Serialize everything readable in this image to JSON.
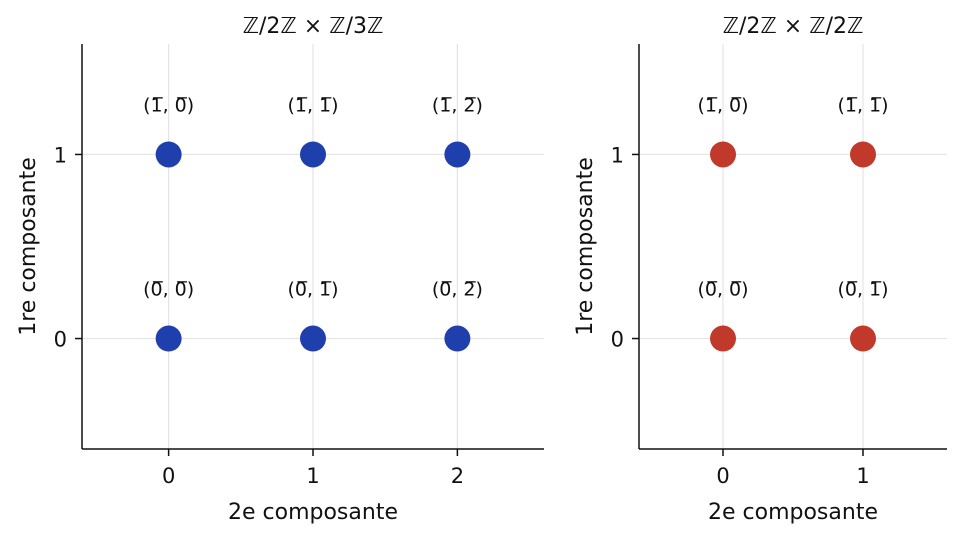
{
  "chart_data": [
    {
      "type": "scatter",
      "title": "ℤ/2ℤ × ℤ/3ℤ",
      "xlabel": "2e composante",
      "ylabel": "1re composante",
      "xlim": [
        -0.6,
        2.6
      ],
      "ylim": [
        -0.6,
        1.6
      ],
      "xticks": [
        "0",
        "1",
        "2"
      ],
      "yticks": [
        "0",
        "1"
      ],
      "grid": true,
      "color": "#1f3fad",
      "points": [
        {
          "x": 0,
          "y": 0,
          "label": "(0̅, 0̅)"
        },
        {
          "x": 1,
          "y": 0,
          "label": "(0̅, 1̅)"
        },
        {
          "x": 2,
          "y": 0,
          "label": "(0̅, 2̅)"
        },
        {
          "x": 0,
          "y": 1,
          "label": "(1̅, 0̅)"
        },
        {
          "x": 1,
          "y": 1,
          "label": "(1̅, 1̅)"
        },
        {
          "x": 2,
          "y": 1,
          "label": "(1̅, 2̅)"
        }
      ]
    },
    {
      "type": "scatter",
      "title": "ℤ/2ℤ × ℤ/2ℤ",
      "xlabel": "2e composante",
      "ylabel": "1re composante",
      "xlim": [
        -0.6,
        1.6
      ],
      "ylim": [
        -0.6,
        1.6
      ],
      "xticks": [
        "0",
        "1"
      ],
      "yticks": [
        "0",
        "1"
      ],
      "grid": true,
      "color": "#c0392b",
      "points": [
        {
          "x": 0,
          "y": 0,
          "label": "(0̅, 0̅)"
        },
        {
          "x": 1,
          "y": 0,
          "label": "(0̅, 1̅)"
        },
        {
          "x": 0,
          "y": 1,
          "label": "(1̅, 0̅)"
        },
        {
          "x": 1,
          "y": 1,
          "label": "(1̅, 1̅)"
        }
      ]
    }
  ]
}
